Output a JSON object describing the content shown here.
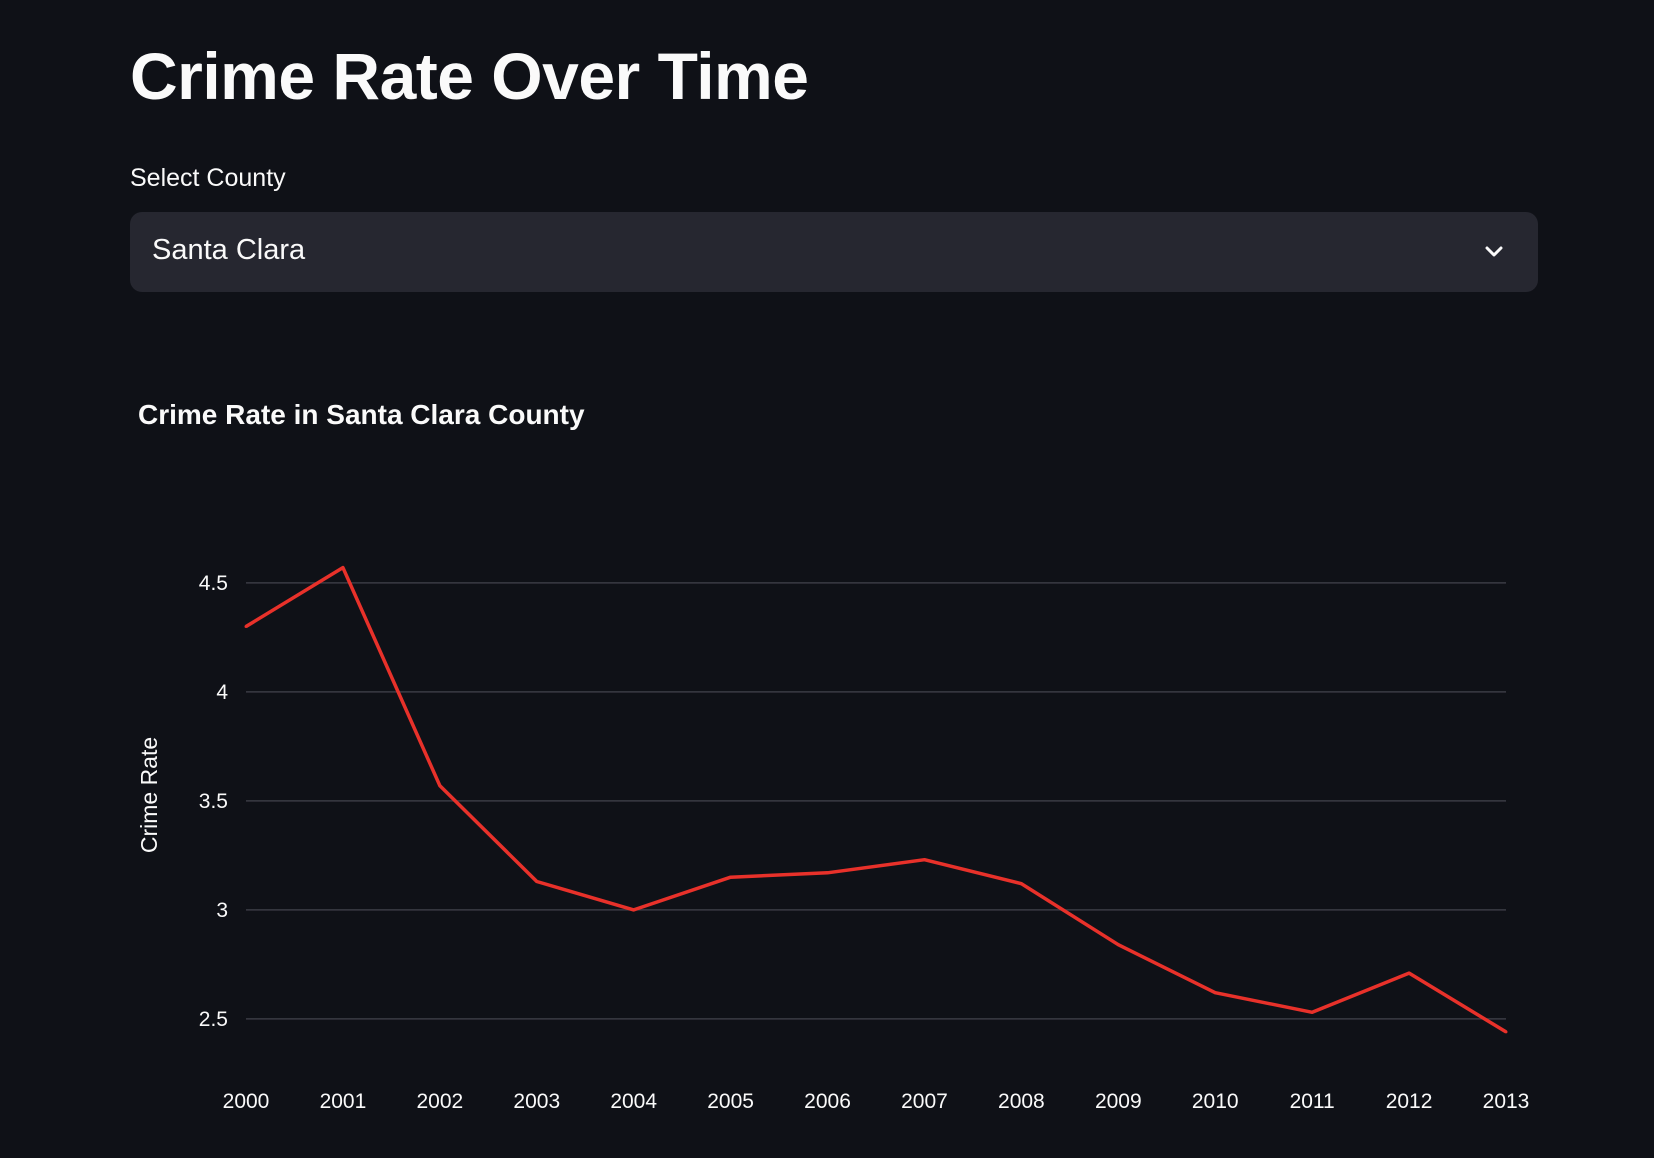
{
  "page": {
    "title": "Crime Rate Over Time"
  },
  "county_select": {
    "label": "Select County",
    "value": "Santa Clara",
    "icon": "chevron-down-icon"
  },
  "colors": {
    "background": "#0f1117",
    "select_background": "#262730",
    "text": "#fafafa",
    "line": "#e8312a",
    "grid": "#3a3b44"
  },
  "chart_data": {
    "type": "line",
    "title": "Crime Rate in Santa Clara County",
    "xlabel": "",
    "ylabel": "Crime Rate",
    "x": [
      2000,
      2001,
      2002,
      2003,
      2004,
      2005,
      2006,
      2007,
      2008,
      2009,
      2010,
      2011,
      2012,
      2013
    ],
    "series": [
      {
        "values": [
          4.3,
          4.57,
          3.57,
          3.13,
          3.0,
          3.15,
          3.17,
          3.23,
          3.12,
          2.84,
          2.62,
          2.53,
          2.71,
          2.44
        ]
      }
    ],
    "yticks": [
      2.5,
      3,
      3.5,
      4,
      4.5
    ],
    "ytick_labels": [
      "2.5",
      "3",
      "3.5",
      "4",
      "4.5"
    ],
    "ylim": [
      2.38,
      4.66
    ],
    "grid": "horizontal",
    "legend": "none"
  }
}
